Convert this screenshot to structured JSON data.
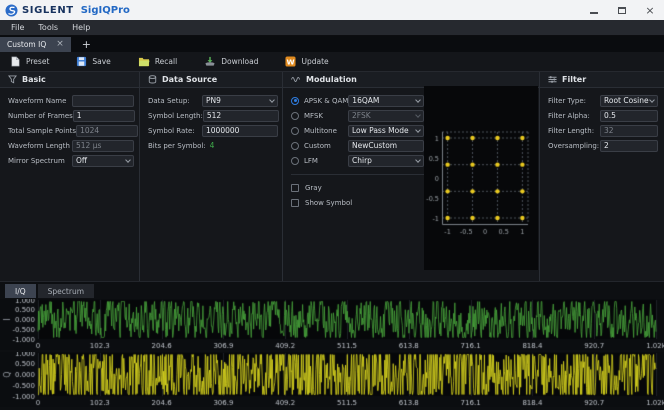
{
  "window": {
    "brand": "SIGLENT",
    "app": "SigIQPro",
    "close_glyph": "×"
  },
  "menubar": {
    "items": [
      "File",
      "Tools",
      "Help"
    ]
  },
  "tabbar": {
    "active_tab": "Custom IQ",
    "close_glyph": "×",
    "add_glyph": "+"
  },
  "toolbar": {
    "buttons": [
      {
        "label": "Preset",
        "icon": "preset-document-icon"
      },
      {
        "label": "Save",
        "icon": "save-floppy-icon"
      },
      {
        "label": "Recall",
        "icon": "recall-folder-icon"
      },
      {
        "label": "Download",
        "icon": "download-icon"
      },
      {
        "label": "Update",
        "icon": "update-icon"
      }
    ]
  },
  "panels": {
    "basic": {
      "title": "Basic",
      "fields": [
        {
          "label": "Waveform Name",
          "value": "",
          "control": "input",
          "disabled": false
        },
        {
          "label": "Number of Frames",
          "value": "1",
          "control": "input",
          "disabled": false
        },
        {
          "label": "Total Sample Points",
          "value": "1024",
          "control": "input",
          "disabled": true
        },
        {
          "label": "Waveform Length",
          "value": "512 μs",
          "control": "input",
          "disabled": true
        },
        {
          "label": "Mirror Spectrum",
          "value": "Off",
          "control": "select",
          "disabled": false
        }
      ]
    },
    "data_source": {
      "title": "Data Source",
      "fields": [
        {
          "label": "Data Setup:",
          "value": "PN9",
          "control": "select",
          "disabled": false
        },
        {
          "label": "Symbol Length:",
          "value": "512",
          "control": "input",
          "disabled": false
        },
        {
          "label": "Symbol Rate:",
          "value": "1000000",
          "control": "input",
          "disabled": false
        },
        {
          "label": "Bits per Symbol:",
          "value": "4",
          "control": "text-green",
          "disabled": false
        }
      ]
    },
    "modulation": {
      "title": "Modulation",
      "options": [
        {
          "label": "APSK & QAM",
          "value": "16QAM",
          "selected": true,
          "control": "select",
          "disabled": false
        },
        {
          "label": "MFSK",
          "value": "2FSK",
          "selected": false,
          "control": "select",
          "disabled": true
        },
        {
          "label": "Multitone",
          "value": "Low Pass Mode",
          "selected": false,
          "control": "select",
          "disabled": false
        },
        {
          "label": "Custom",
          "value": "NewCustom",
          "selected": false,
          "control": "input",
          "disabled": false
        },
        {
          "label": "LFM",
          "value": "Chirp",
          "selected": false,
          "control": "select",
          "disabled": false
        }
      ],
      "checkboxes": [
        {
          "label": "Gray",
          "checked": false
        },
        {
          "label": "Show Symbol",
          "checked": false
        }
      ]
    },
    "filter": {
      "title": "Filter",
      "fields": [
        {
          "label": "Filter Type:",
          "value": "Root Cosine",
          "control": "select",
          "disabled": false
        },
        {
          "label": "Filter Alpha:",
          "value": "0.5",
          "control": "input",
          "disabled": false
        },
        {
          "label": "Filter Length:",
          "value": "32",
          "control": "input",
          "disabled": true
        },
        {
          "label": "Oversampling:",
          "value": "2",
          "control": "input",
          "disabled": false
        }
      ]
    }
  },
  "constellation": {
    "type": "scatter",
    "dot_levels": [
      -1,
      -0.3333,
      0.3333,
      1
    ],
    "tick_values": [
      -1,
      -0.5,
      0,
      0.5,
      1
    ],
    "x_tick_labels": [
      "-1",
      "-0.5",
      "0",
      "0.5",
      "1"
    ],
    "y_tick_labels": [
      "1",
      "0.5",
      "0",
      "-0.5",
      "-1"
    ],
    "range": 1.15,
    "dot_color": "#e9c91f"
  },
  "bottom": {
    "tabs": [
      {
        "label": "I/Q",
        "active": true
      },
      {
        "label": "Spectrum",
        "active": false
      }
    ],
    "y_ticks": [
      "1.000",
      "0.500",
      "0.000",
      "-0.500",
      "-1.000"
    ],
    "x_ticks": [
      "0",
      "102.3",
      "204.6",
      "306.9",
      "409.2",
      "511.5",
      "613.8",
      "716.1",
      "818.4",
      "920.7",
      "1.02k"
    ],
    "samples": 1024,
    "plots": [
      {
        "name": "I",
        "color": "#47a33b",
        "seed": 9,
        "smooth": 0.45,
        "gain": 1.1
      },
      {
        "name": "Q",
        "color": "#dcd81e",
        "seed": 23,
        "smooth": 0.08,
        "gain": 1.5
      }
    ]
  },
  "colors": {
    "accent_blue": "#2e7ce0",
    "value_green": "#3fae4c",
    "grid": "#1d2127",
    "plot_bg": "#060709",
    "tick_text": "#c0c5cc",
    "axis_name_text": "#9aa0a8"
  }
}
